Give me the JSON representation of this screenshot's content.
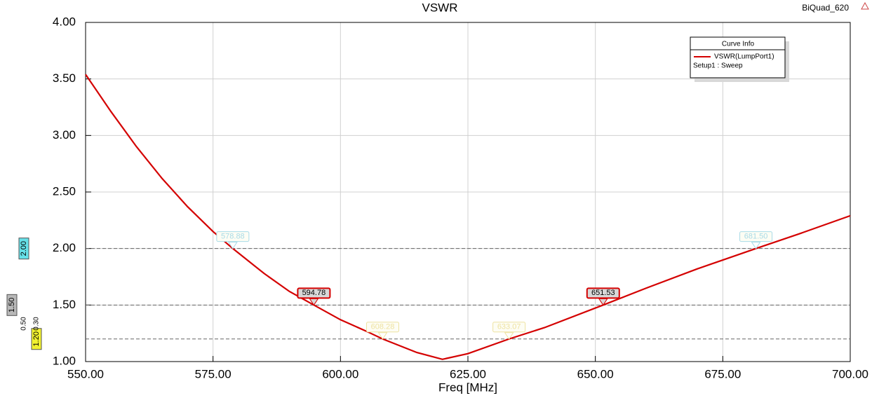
{
  "chart_data": {
    "type": "line",
    "title": "VSWR",
    "corner_label": "BiQuad_620",
    "x_label": "Freq [MHz]",
    "xlim": [
      550,
      700
    ],
    "xticks": [
      {
        "value": 550,
        "label": "550.00"
      },
      {
        "value": 575,
        "label": "575.00"
      },
      {
        "value": 600,
        "label": "600.00"
      },
      {
        "value": 625,
        "label": "625.00"
      },
      {
        "value": 650,
        "label": "650.00"
      },
      {
        "value": 675,
        "label": "675.00"
      },
      {
        "value": 700,
        "label": "700.00"
      }
    ],
    "ylim": [
      1,
      4
    ],
    "yticks": [
      {
        "value": 1,
        "label": "1.00"
      },
      {
        "value": 1.5,
        "label": "1.50"
      },
      {
        "value": 2,
        "label": "2.00"
      },
      {
        "value": 2.5,
        "label": "2.50"
      },
      {
        "value": 3,
        "label": "3.00"
      },
      {
        "value": 3.5,
        "label": "3.50"
      },
      {
        "value": 4,
        "label": "4.00"
      }
    ],
    "grid": true,
    "legend_title": "Curve Info",
    "legend_subtitle": "Setup1 : Sweep",
    "series": [
      {
        "name": "VSWR(LumpPort1)",
        "color": "#d40000",
        "x": [
          550,
          555,
          560,
          565,
          570,
          575,
          578.88,
          585,
          590,
          594.78,
          600,
          605,
          608.28,
          615,
          620,
          625,
          633.07,
          640,
          651.53,
          660,
          670,
          681.5,
          690,
          700
        ],
        "values": [
          3.54,
          3.21,
          2.9,
          2.62,
          2.37,
          2.15,
          2.0,
          1.78,
          1.62,
          1.5,
          1.37,
          1.27,
          1.2,
          1.08,
          1.02,
          1.07,
          1.2,
          1.3,
          1.5,
          1.65,
          1.82,
          2.0,
          2.13,
          2.29
        ]
      }
    ],
    "ref_lines": [
      {
        "value": 2.0,
        "label": "2.00",
        "color": "#66e0e8"
      },
      {
        "value": 1.5,
        "label": "1.50",
        "color": "#b8b8b8"
      },
      {
        "value": 1.2,
        "label": "1.20",
        "color": "#f2f230"
      }
    ],
    "deltas": [
      "0.50",
      "0.30"
    ],
    "markers": [
      {
        "x": 578.88,
        "y": 2.0,
        "label": "578.88",
        "color": "#a8dbe6"
      },
      {
        "x": 594.78,
        "y": 1.5,
        "label": "594.78",
        "color": "#d40000"
      },
      {
        "x": 608.28,
        "y": 1.2,
        "label": "608.28",
        "color": "#eee2a0"
      },
      {
        "x": 633.07,
        "y": 1.2,
        "label": "633.07",
        "color": "#eee2a0"
      },
      {
        "x": 651.53,
        "y": 1.5,
        "label": "651.53",
        "color": "#d40000"
      },
      {
        "x": 681.5,
        "y": 2.0,
        "label": "681.50",
        "color": "#a8dbe6"
      }
    ]
  }
}
